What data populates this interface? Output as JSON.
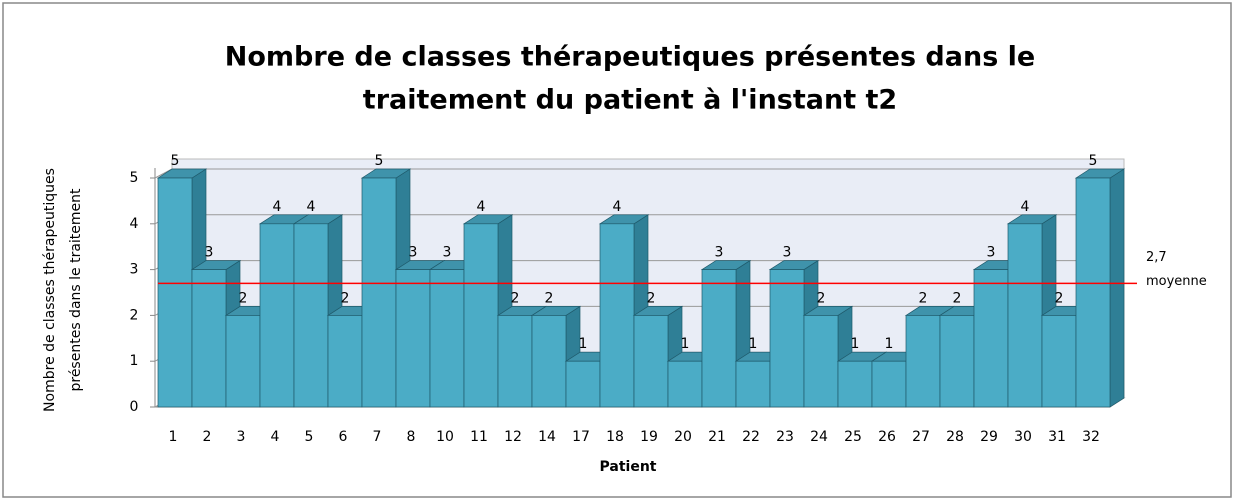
{
  "chart_data": {
    "type": "bar3d",
    "title": [
      "Nombre de classes thérapeutiques présentes dans le",
      "traitement du patient à l'instant t2"
    ],
    "ylabel": [
      "Nombre de classes thérapeutiques",
      "présentes dans le traitement"
    ],
    "xlabel": "Patient",
    "categories": [
      "1",
      "2",
      "3",
      "4",
      "5",
      "6",
      "7",
      "8",
      "10",
      "11",
      "12",
      "14",
      "17",
      "18",
      "19",
      "20",
      "21",
      "22",
      "23",
      "24",
      "25",
      "26",
      "27",
      "28",
      "29",
      "30",
      "31",
      "32"
    ],
    "values": [
      5,
      3,
      2,
      4,
      4,
      2,
      5,
      3,
      3,
      4,
      2,
      2,
      1,
      4,
      2,
      1,
      3,
      1,
      3,
      2,
      1,
      1,
      2,
      2,
      3,
      4,
      2,
      5
    ],
    "color": "#4bacc6",
    "ylim": [
      0,
      5
    ],
    "yticks": [
      0,
      1,
      2,
      3,
      4,
      5
    ],
    "grid": true,
    "mean_line": {
      "value": 2.7,
      "label": "2,7",
      "name": "moyenne",
      "color": "#ff0000"
    }
  }
}
